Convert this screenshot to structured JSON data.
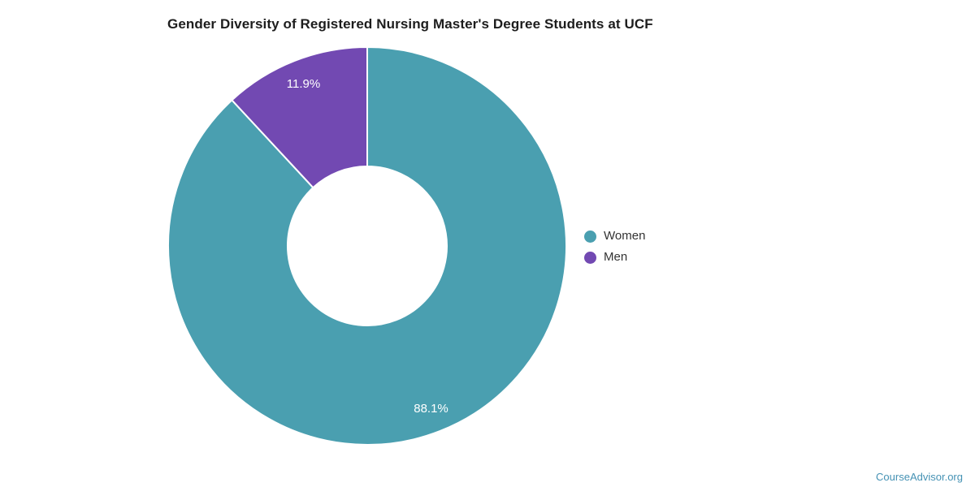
{
  "title": "Gender Diversity of Registered Nursing Master's Degree Students at UCF",
  "watermark": "CourseAdvisor.org",
  "colors": {
    "women": "#4A9FB0",
    "men": "#7249B2",
    "slice_border": "#ffffff",
    "watermark_text": "#4592b4",
    "title_text": "#1d1d1d",
    "legend_text": "#333333"
  },
  "legend": {
    "items": [
      {
        "label": "Women",
        "color": "#4A9FB0"
      },
      {
        "label": "Men",
        "color": "#7249B2"
      }
    ]
  },
  "chart_data": {
    "type": "pie",
    "subtype": "donut",
    "title": "Gender Diversity of Registered Nursing Master's Degree Students at UCF",
    "unit": "%",
    "start_angle_deg": 0,
    "direction": "clockwise",
    "legend_position": "right",
    "series": [
      {
        "name": "Women",
        "value": 88.1,
        "label": "88.1%",
        "color": "#4A9FB0"
      },
      {
        "name": "Men",
        "value": 11.9,
        "label": "11.9%",
        "color": "#7249B2"
      }
    ]
  }
}
